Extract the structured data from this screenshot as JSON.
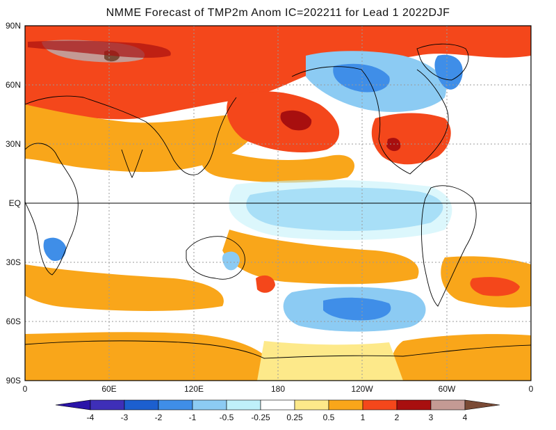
{
  "title": "NMME Forecast of TMP2m Anom IC=202211 for Lead 1 2022DJF",
  "colors": {
    "ocean_background": "#ffffff",
    "frame": "#000000",
    "gridline": "#9a9a9a",
    "coastline": "#000000",
    "pos_025_05": "#fde98a",
    "pos_05_1": "#f9a61a",
    "pos_1_2": "#f4471b",
    "pos_2_3": "#a80f0f",
    "pos_3_4": "#c49a94",
    "pos_gt4": "#7a4a35",
    "neg_025_05": "#bff0fa",
    "neg_05_1": "#8ccbf3",
    "neg_1_2": "#3f8ee8",
    "neg_2_3": "#1c5fcf",
    "neg_3_4": "#4a3ec8",
    "neg_lt4": "#2a14a8"
  },
  "map": {
    "lat_labels": [
      "90N",
      "60N",
      "30N",
      "EQ",
      "30S",
      "60S",
      "90S"
    ],
    "lon_labels": [
      "0",
      "60E",
      "120E",
      "180",
      "120W",
      "60W",
      "0"
    ]
  },
  "legend": {
    "labels": [
      "-4",
      "-3",
      "-2",
      "-1",
      "-0.5",
      "-0.25",
      "0.25",
      "0.5",
      "1",
      "2",
      "3",
      "4"
    ],
    "bin_colors": [
      "#3e2fb8",
      "#1c5fcf",
      "#3f8ee8",
      "#8ccbf3",
      "#bff0fa",
      "#ffffff",
      "#fde98a",
      "#f9a61a",
      "#f4471b",
      "#a80f0f",
      "#c49a94"
    ],
    "left_arrow_color": "#2a14a8",
    "right_arrow_color": "#7a4a35"
  }
}
